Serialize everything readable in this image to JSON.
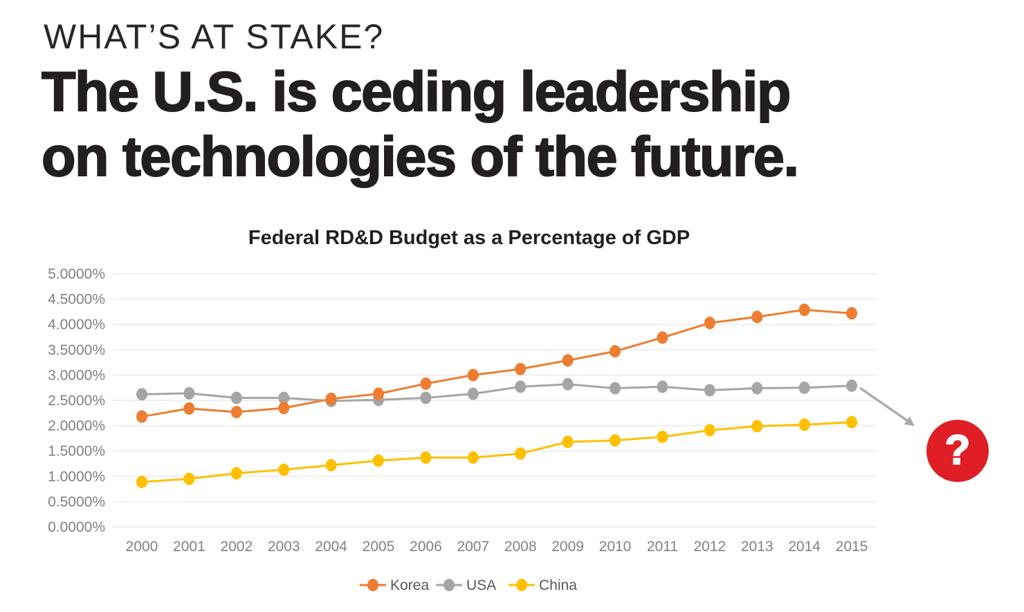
{
  "header": {
    "kicker": "WHAT’S AT STAKE?",
    "headline_line1": "The U.S. is ceding leadership",
    "headline_line2": "on technologies of the future."
  },
  "chart_data": {
    "type": "line",
    "title": "Federal RD&D Budget as a Percentage of GDP",
    "x": [
      "2000",
      "2001",
      "2002",
      "2003",
      "2004",
      "2005",
      "2006",
      "2007",
      "2008",
      "2009",
      "2010",
      "2011",
      "2012",
      "2013",
      "2014",
      "2015"
    ],
    "series": [
      {
        "name": "Korea",
        "color": "#ED7D31",
        "values": [
          2.18,
          2.34,
          2.27,
          2.35,
          2.53,
          2.63,
          2.83,
          3.0,
          3.12,
          3.29,
          3.47,
          3.74,
          4.03,
          4.15,
          4.29,
          4.22
        ]
      },
      {
        "name": "USA",
        "color": "#A5A5A5",
        "values": [
          2.62,
          2.64,
          2.55,
          2.55,
          2.49,
          2.51,
          2.55,
          2.63,
          2.77,
          2.82,
          2.74,
          2.77,
          2.7,
          2.74,
          2.75,
          2.79
        ]
      },
      {
        "name": "China",
        "color": "#FFC000",
        "values": [
          0.89,
          0.95,
          1.06,
          1.13,
          1.22,
          1.31,
          1.37,
          1.37,
          1.45,
          1.68,
          1.71,
          1.78,
          1.91,
          1.99,
          2.02,
          2.07
        ]
      }
    ],
    "ylim": [
      0,
      5
    ],
    "ytick_step": 0.5,
    "ytick_labels": [
      "0.0000%",
      "0.5000%",
      "1.0000%",
      "1.5000%",
      "2.0000%",
      "2.5000%",
      "3.0000%",
      "3.5000%",
      "4.0000%",
      "4.5000%",
      "5.0000%"
    ],
    "grid": true,
    "legend": {
      "position": "bottom",
      "items": [
        "Korea",
        "USA",
        "China"
      ]
    },
    "annotation": {
      "text": "?",
      "color": "#E01E25"
    }
  }
}
